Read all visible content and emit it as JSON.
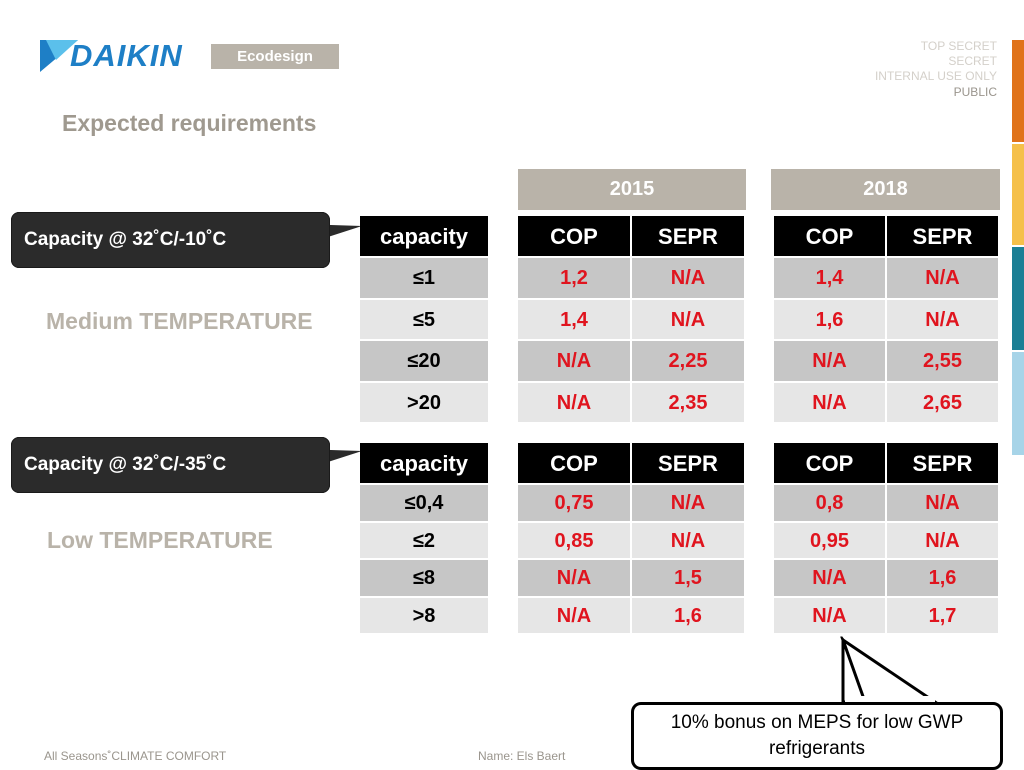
{
  "header": {
    "logo_text": "DAIKIN",
    "badge": "Ecodesign",
    "classification": [
      "TOP SECRET",
      "SECRET",
      "INTERNAL USE ONLY",
      "PUBLIC"
    ]
  },
  "title": "Expected requirements",
  "years": [
    "2015",
    "2018"
  ],
  "medium": {
    "callout": "Capacity @ 32˚C/-10˚C",
    "label": "Medium TEMPERATURE",
    "headers": {
      "capacity": "capacity",
      "cop": "COP",
      "sepr": "SEPR"
    },
    "rows": [
      {
        "capacity": "≤1",
        "cop2015": "1,2",
        "sepr2015": "N/A",
        "cop2018": "1,4",
        "sepr2018": "N/A"
      },
      {
        "capacity": "≤5",
        "cop2015": "1,4",
        "sepr2015": "N/A",
        "cop2018": "1,6",
        "sepr2018": "N/A"
      },
      {
        "capacity": "≤20",
        "cop2015": "N/A",
        "sepr2015": "2,25",
        "cop2018": "N/A",
        "sepr2018": "2,55"
      },
      {
        "capacity": ">20",
        "cop2015": "N/A",
        "sepr2015": "2,35",
        "cop2018": "N/A",
        "sepr2018": "2,65"
      }
    ]
  },
  "low": {
    "callout": "Capacity @ 32˚C/-35˚C",
    "label": "Low TEMPERATURE",
    "headers": {
      "capacity": "capacity",
      "cop": "COP",
      "sepr": "SEPR"
    },
    "rows": [
      {
        "capacity": "≤0,4",
        "cop2015": "0,75",
        "sepr2015": "N/A",
        "cop2018": "0,8",
        "sepr2018": "N/A"
      },
      {
        "capacity": "≤2",
        "cop2015": "0,85",
        "sepr2015": "N/A",
        "cop2018": "0,95",
        "sepr2018": "N/A"
      },
      {
        "capacity": "≤8",
        "cop2015": "N/A",
        "sepr2015": "1,5",
        "cop2018": "N/A",
        "sepr2018": "1,6"
      },
      {
        "capacity": ">8",
        "cop2015": "N/A",
        "sepr2015": "1,6",
        "cop2018": "N/A",
        "sepr2018": "1,7"
      }
    ]
  },
  "note": "10% bonus on MEPS for low GWP refrigerants",
  "footer": {
    "left": "All Seasons˚CLIMATE COMFORT",
    "name": "Name:  Els Baert"
  },
  "colors": {
    "accent_gray": "#b9b3a9",
    "value_red": "#e0141e",
    "brand_blue": "#1e7fc6",
    "stripe": [
      "#e0731a",
      "#f5c04a",
      "#1b7f95",
      "#a7d4e8"
    ]
  }
}
